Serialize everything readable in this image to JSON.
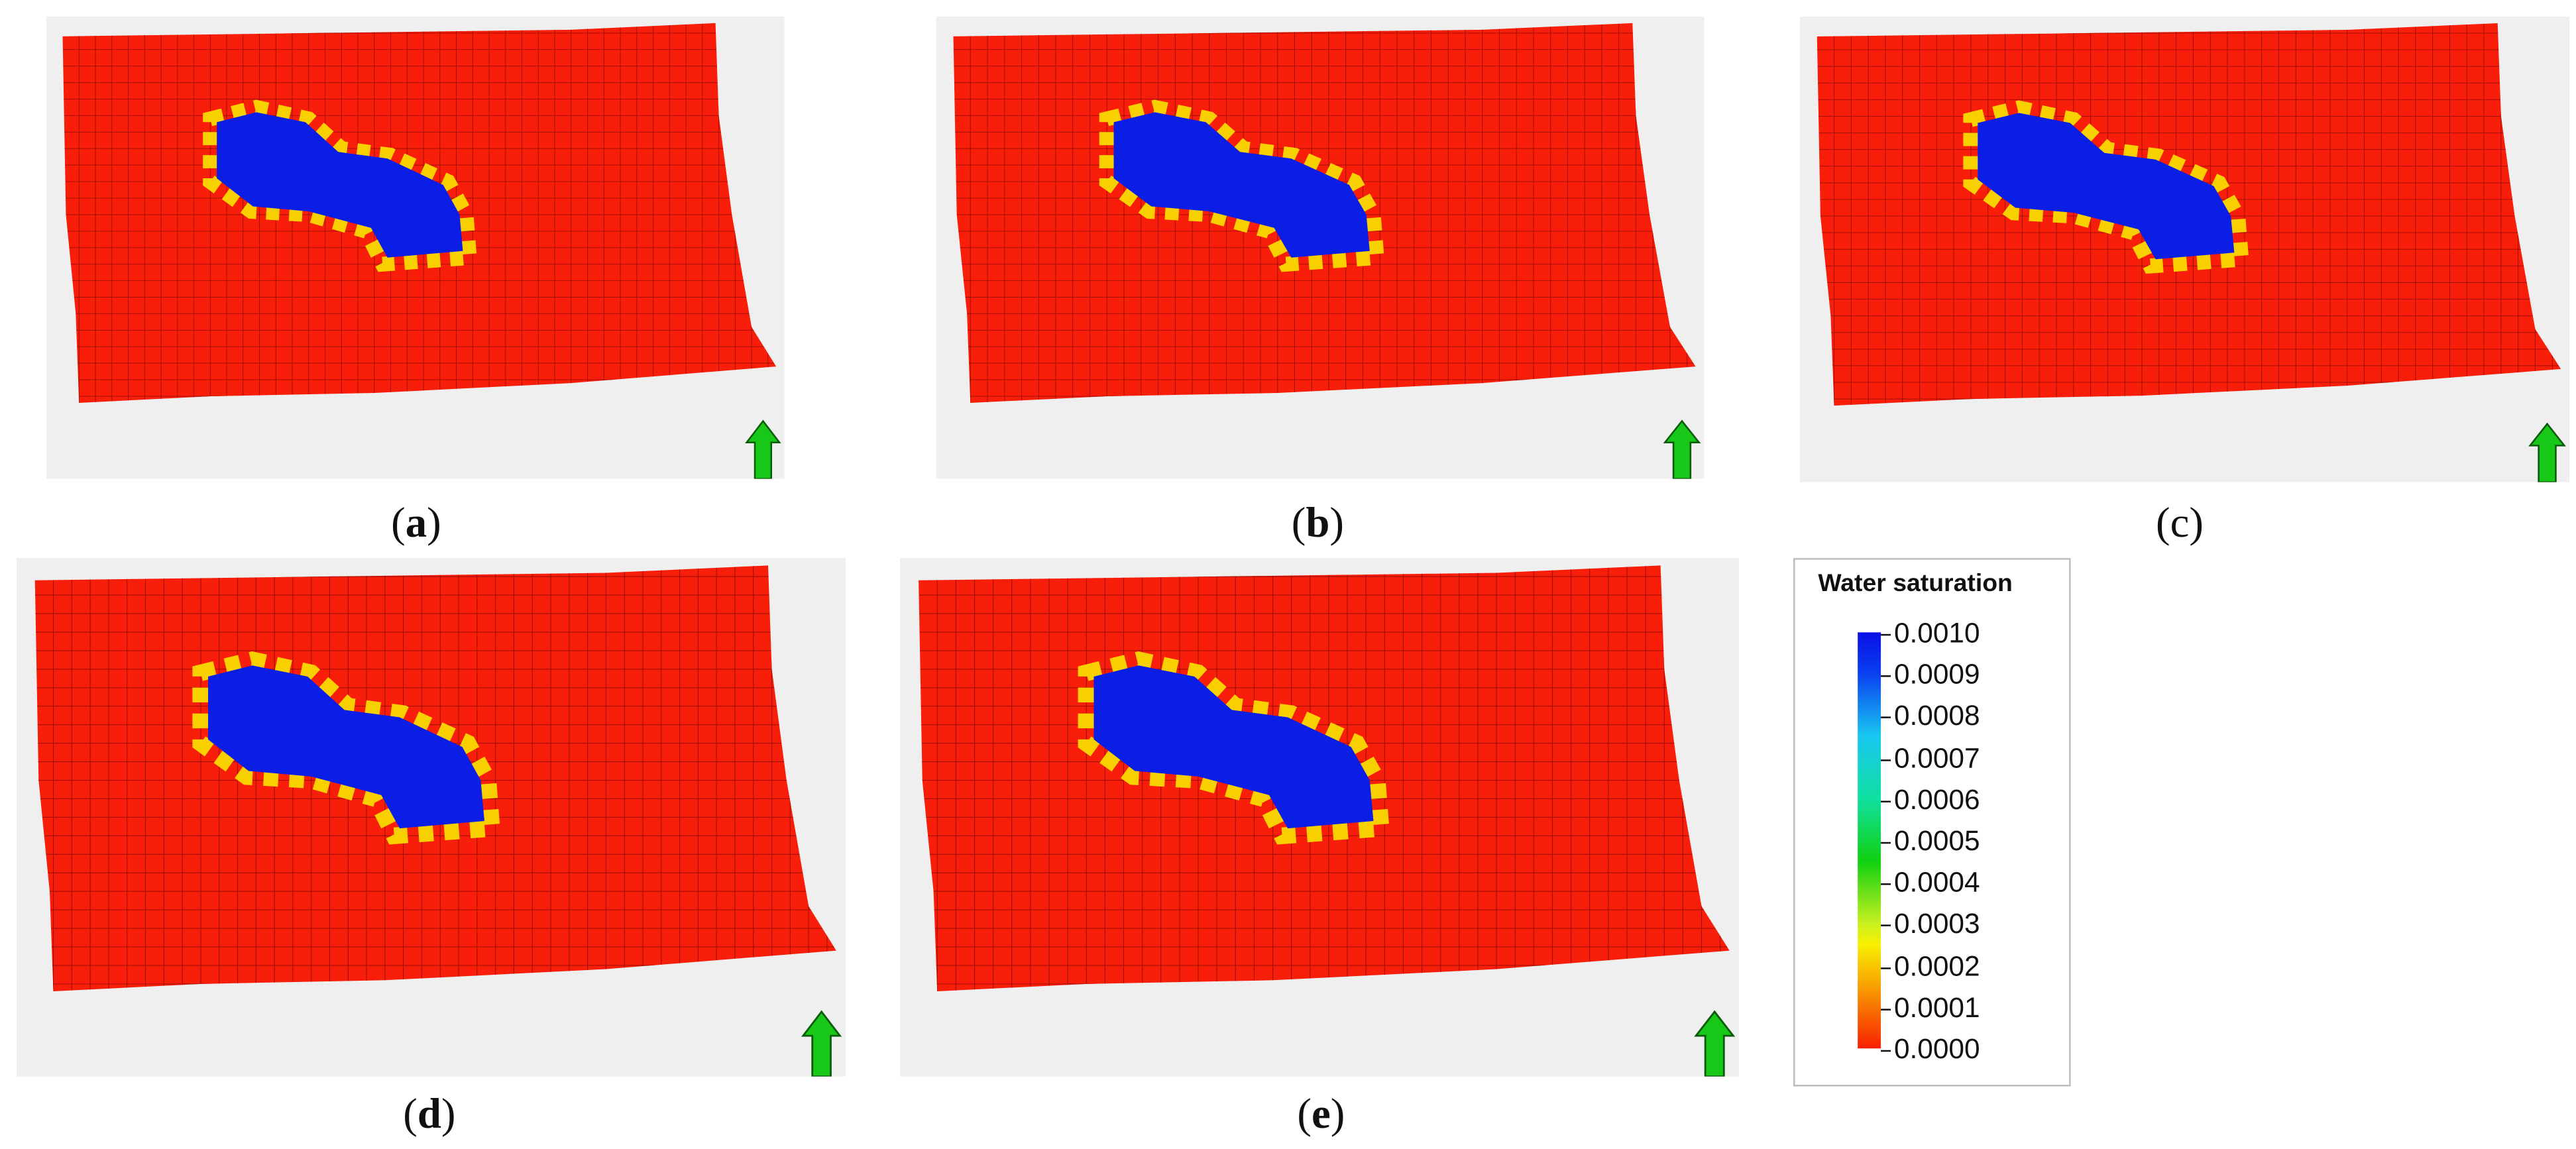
{
  "panels": [
    {
      "id": "a",
      "label": "a"
    },
    {
      "id": "b",
      "label": "b"
    },
    {
      "id": "c",
      "label": "c"
    },
    {
      "id": "d",
      "label": "d"
    },
    {
      "id": "e",
      "label": "e"
    }
  ],
  "legend": {
    "title": "Water saturation",
    "ticks": [
      "0.0010",
      "0.0009",
      "0.0008",
      "0.0007",
      "0.0006",
      "0.0005",
      "0.0004",
      "0.0003",
      "0.0002",
      "0.0001",
      "0.0000"
    ]
  },
  "colors": {
    "background": "#efefef",
    "field": "#f81e0a",
    "blob": "#0a1ee6",
    "arrow": "#18c818"
  }
}
